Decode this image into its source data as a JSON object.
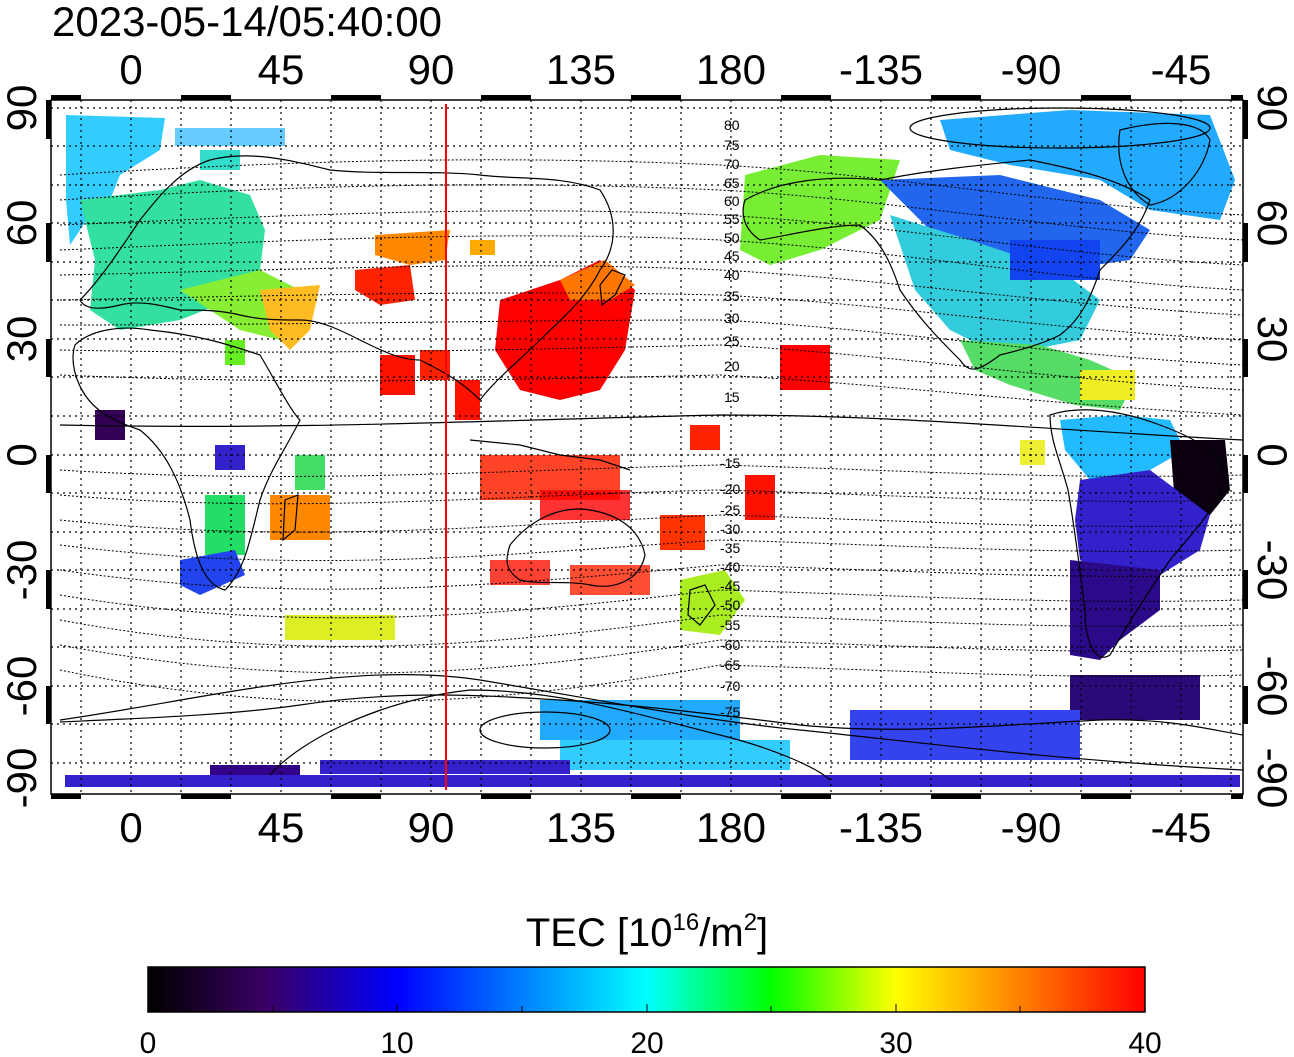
{
  "title": "2023-05-14/05:40:00",
  "map": {
    "x_tick_labels": [
      "0",
      "45",
      "90",
      "135",
      "180",
      "-135",
      "-90",
      "-45"
    ],
    "y_tick_labels": [
      "90",
      "60",
      "30",
      "0",
      "-30",
      "-60",
      "-90"
    ],
    "red_line_longitude": 95,
    "contour_labels_north": [
      "80",
      "75",
      "70",
      "65",
      "60",
      "55",
      "50",
      "45",
      "40",
      "35",
      "30",
      "25",
      "20",
      "15"
    ],
    "contour_labels_south": [
      "-15",
      "-20",
      "-25",
      "-30",
      "-35",
      "-40",
      "-45",
      "-50",
      "-55",
      "-60",
      "-65",
      "-70",
      "-75"
    ]
  },
  "colorbar": {
    "label_main": "TEC  [10",
    "label_sup1": "16",
    "label_mid": "/m",
    "label_sup2": "2",
    "label_end": "]",
    "tick_labels": [
      "0",
      "10",
      "20",
      "30",
      "40"
    ],
    "min": 0,
    "max": 40
  },
  "colors": {
    "red_line": "#ff0000",
    "scale": [
      "#000000",
      "#3a0066",
      "#0000ff",
      "#00ffff",
      "#00ff00",
      "#ffff00",
      "#ff8000",
      "#ff0000"
    ]
  }
}
